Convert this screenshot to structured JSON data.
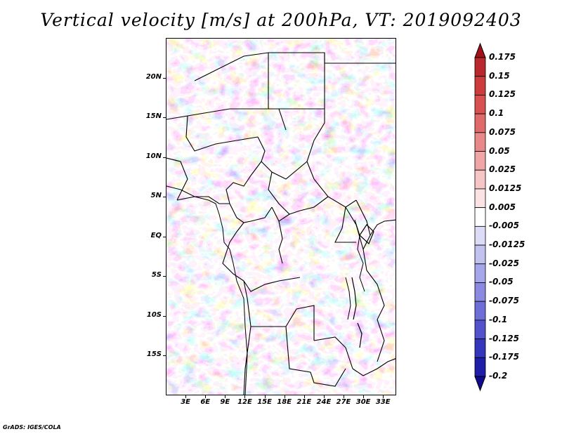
{
  "title": "Vertical velocity [m/s] at 200hPa, VT: 2019092403",
  "footer": "GrADS: IGES/COLA",
  "map": {
    "lat_labels": [
      "20N",
      "15N",
      "10N",
      "5N",
      "EQ",
      "5S",
      "10S",
      "15S"
    ],
    "lat_values": [
      20,
      15,
      10,
      5,
      0,
      -5,
      -10,
      -15
    ],
    "lon_labels": [
      "3E",
      "6E",
      "9E",
      "12E",
      "15E",
      "18E",
      "21E",
      "24E",
      "27E",
      "30E",
      "33E"
    ],
    "lon_values": [
      3,
      6,
      9,
      12,
      15,
      18,
      21,
      24,
      27,
      30,
      33
    ],
    "lon_range": [
      0,
      35
    ],
    "lat_range": [
      -20,
      25
    ]
  },
  "colorbar": {
    "labels": [
      "0.175",
      "0.15",
      "0.125",
      "0.1",
      "0.075",
      "0.05",
      "0.025",
      "0.0125",
      "0.005",
      "-0.005",
      "-0.0125",
      "-0.025",
      "-0.05",
      "-0.075",
      "-0.1",
      "-0.125",
      "-0.175",
      "-0.2"
    ],
    "colors": [
      "#a01218",
      "#b8282c",
      "#cc3c3c",
      "#d85050",
      "#e06a6a",
      "#e88888",
      "#f0a6a6",
      "#f6c6c6",
      "#fbe3e3",
      "#ffffff",
      "#dcdcf6",
      "#c2c2f0",
      "#a6a6ea",
      "#8a8ae2",
      "#6e6ed8",
      "#5252cc",
      "#3636bc",
      "#1e1ea8",
      "#100a8c"
    ]
  },
  "colors": {
    "upward": "#e05a5a",
    "downward": "#6a6ad8",
    "neutral": "#ffffff"
  }
}
